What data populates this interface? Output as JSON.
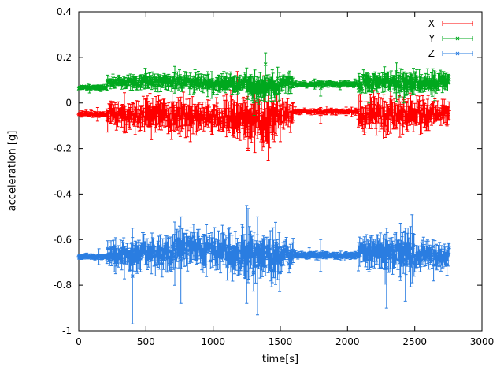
{
  "chart_data": {
    "type": "line",
    "style": "points-with-errorbars",
    "title": "",
    "xlabel": "time[s]",
    "ylabel": "acceleration [g]",
    "xlim": [
      0,
      3000
    ],
    "ylim": [
      -1,
      0.4
    ],
    "grid": false,
    "legend_position": "top-right-inside",
    "background": "#ffffff",
    "axis_color": "#000000",
    "sample_step_s": 5,
    "xticks": {
      "values": [
        0,
        500,
        1000,
        1500,
        2000,
        2500,
        3000
      ],
      "labels": [
        "0",
        "500",
        "1000",
        "1500",
        "2000",
        "2500",
        "3000"
      ]
    },
    "yticks": {
      "values": [
        -1,
        -0.8,
        -0.6,
        -0.4,
        -0.2,
        0,
        0.2,
        0.4
      ],
      "labels": [
        "-1",
        "-0.8",
        "-0.6",
        "-0.4",
        "-0.2",
        "0",
        "0.2",
        "0.4"
      ]
    },
    "series": [
      {
        "name": "X",
        "color": "#ff0000",
        "marker": "plus",
        "data_range": [
          0,
          2760
        ],
        "baseline": -0.05,
        "segments": [
          [
            0,
            210,
            -0.048,
            0.01
          ],
          [
            210,
            330,
            -0.05,
            0.045
          ],
          [
            330,
            520,
            -0.055,
            0.05
          ],
          [
            520,
            700,
            -0.06,
            0.06
          ],
          [
            700,
            900,
            -0.055,
            0.055
          ],
          [
            900,
            1080,
            -0.06,
            0.05
          ],
          [
            1080,
            1250,
            -0.06,
            0.07
          ],
          [
            1250,
            1460,
            -0.07,
            0.08
          ],
          [
            1460,
            1600,
            -0.05,
            0.05
          ],
          [
            1600,
            2080,
            -0.038,
            0.009
          ],
          [
            2080,
            2250,
            -0.05,
            0.06
          ],
          [
            2250,
            2450,
            -0.055,
            0.06
          ],
          [
            2450,
            2620,
            -0.05,
            0.055
          ],
          [
            2620,
            2760,
            -0.045,
            0.04
          ]
        ],
        "outliers": [
          [
            140,
            -0.08,
            -0.02
          ],
          [
            690,
            -0.16,
            -0.02
          ],
          [
            830,
            -0.17,
            -0.03
          ],
          [
            1260,
            -0.21,
            -0.05
          ],
          [
            1380,
            -0.06,
            0.12
          ],
          [
            1500,
            -0.17,
            -0.01
          ],
          [
            1800,
            -0.09,
            -0.02
          ]
        ]
      },
      {
        "name": "Y",
        "color": "#00a81e",
        "marker": "times",
        "data_range": [
          0,
          2760
        ],
        "baseline": 0.08,
        "segments": [
          [
            0,
            210,
            0.068,
            0.008
          ],
          [
            210,
            400,
            0.09,
            0.022
          ],
          [
            400,
            700,
            0.095,
            0.027
          ],
          [
            700,
            1000,
            0.09,
            0.03
          ],
          [
            1000,
            1250,
            0.085,
            0.032
          ],
          [
            1250,
            1500,
            0.07,
            0.05
          ],
          [
            1500,
            1600,
            0.09,
            0.03
          ],
          [
            1600,
            2080,
            0.082,
            0.01
          ],
          [
            2080,
            2300,
            0.09,
            0.035
          ],
          [
            2300,
            2500,
            0.085,
            0.04
          ],
          [
            2500,
            2760,
            0.09,
            0.035
          ]
        ],
        "outliers": [
          [
            1340,
            -0.005,
            0.1
          ],
          [
            1390,
            0.12,
            0.22
          ],
          [
            1800,
            0.03,
            0.1
          ],
          [
            2160,
            0.0,
            0.12
          ],
          [
            2420,
            0.0,
            0.11
          ],
          [
            2650,
            0.01,
            0.12
          ]
        ]
      },
      {
        "name": "Z",
        "color": "#2a7de1",
        "marker": "asterisk",
        "data_range": [
          0,
          2760
        ],
        "baseline": -0.67,
        "segments": [
          [
            0,
            210,
            -0.675,
            0.01
          ],
          [
            210,
            400,
            -0.67,
            0.045
          ],
          [
            400,
            700,
            -0.66,
            0.06
          ],
          [
            700,
            900,
            -0.64,
            0.065
          ],
          [
            900,
            1100,
            -0.65,
            0.06
          ],
          [
            1100,
            1300,
            -0.67,
            0.08
          ],
          [
            1300,
            1500,
            -0.68,
            0.08
          ],
          [
            1500,
            1600,
            -0.67,
            0.05
          ],
          [
            1600,
            2080,
            -0.668,
            0.012
          ],
          [
            2080,
            2300,
            -0.655,
            0.06
          ],
          [
            2300,
            2500,
            -0.66,
            0.065
          ],
          [
            2500,
            2760,
            -0.67,
            0.05
          ]
        ],
        "outliers": [
          [
            150,
            -0.71,
            -0.64
          ],
          [
            400,
            -0.97,
            -0.55
          ],
          [
            760,
            -0.88,
            -0.5
          ],
          [
            1250,
            -0.88,
            -0.45
          ],
          [
            1330,
            -0.93,
            -0.5
          ],
          [
            1800,
            -0.74,
            -0.6
          ],
          [
            2290,
            -0.9,
            -0.55
          ],
          [
            2430,
            -0.87,
            -0.55
          ]
        ]
      }
    ]
  }
}
